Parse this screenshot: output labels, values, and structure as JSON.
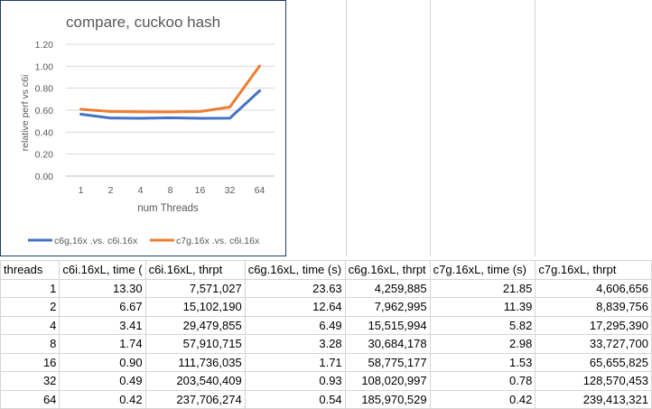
{
  "chart_data": {
    "type": "line",
    "title": "compare, cuckoo hash",
    "xlabel": "num Threads",
    "ylabel": "relative perf vs c6i",
    "categories": [
      "1",
      "2",
      "4",
      "8",
      "16",
      "32",
      "64"
    ],
    "ylim": [
      0,
      1.2
    ],
    "yticks": [
      "0.00",
      "0.20",
      "0.40",
      "0.60",
      "0.80",
      "1.00",
      "1.20"
    ],
    "grid": true,
    "legend_position": "bottom",
    "series": [
      {
        "name": "c6g,16x .vs. c6i.16x",
        "color": "#4472c4",
        "values": [
          0.563,
          0.528,
          0.526,
          0.53,
          0.526,
          0.527,
          0.777
        ]
      },
      {
        "name": "c7g.16x .vs. c6i.16x",
        "color": "#ed7d31",
        "values": [
          0.608,
          0.588,
          0.585,
          0.584,
          0.588,
          0.628,
          1.003
        ]
      }
    ]
  },
  "table": {
    "headers": [
      "threads",
      "c6i.16xL, time (",
      "c6i.16xL, thrpt",
      "c6g.16xL, time (s)",
      "c6g.16xL, thrpt",
      "c7g.16xL, time (s)",
      "c7g.16xL, thrpt"
    ],
    "rows": [
      [
        "1",
        "13.30",
        "7,571,027",
        "23.63",
        "4,259,885",
        "21.85",
        "4,606,656"
      ],
      [
        "2",
        "6.67",
        "15,102,190",
        "12.64",
        "7,962,995",
        "11.39",
        "8,839,756"
      ],
      [
        "4",
        "3.41",
        "29,479,855",
        "6.49",
        "15,515,994",
        "5.82",
        "17,295,390"
      ],
      [
        "8",
        "1.74",
        "57,910,715",
        "3.28",
        "30,684,178",
        "2.98",
        "33,727,700"
      ],
      [
        "16",
        "0.90",
        "111,736,035",
        "1.71",
        "58,775,177",
        "1.53",
        "65,655,825"
      ],
      [
        "32",
        "0.49",
        "203,540,409",
        "0.93",
        "108,020,997",
        "0.78",
        "128,570,453"
      ],
      [
        "64",
        "0.42",
        "237,706,274",
        "0.54",
        "185,970,529",
        "0.42",
        "239,413,321"
      ]
    ]
  }
}
